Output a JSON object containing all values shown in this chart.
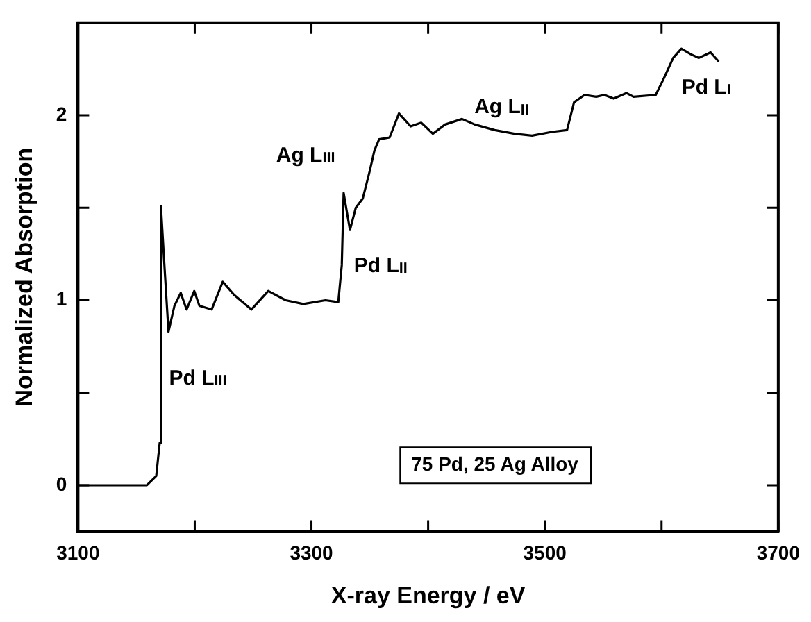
{
  "chart_data": {
    "type": "line",
    "xlabel": "X-ray Energy / eV",
    "ylabel": "Normalized Absorption",
    "xlim": [
      3100,
      3700
    ],
    "ylim": [
      -0.25,
      2.5
    ],
    "xticks": [
      3100,
      {
        "value": 3200,
        "label": null
      },
      3300,
      {
        "value": 3400,
        "label": null
      },
      3500,
      {
        "value": 3600,
        "label": null
      },
      3700
    ],
    "yticks": [
      0,
      {
        "value": 0.5,
        "label": null
      },
      1,
      {
        "value": 1.5,
        "label": null
      },
      2
    ],
    "grid": false,
    "legend": false,
    "marker": "none",
    "line_style": "solid",
    "series": [
      {
        "color": "#000000",
        "x": [
          3100,
          3159,
          3167,
          3170,
          3171,
          3174,
          3177.5,
          3182.6,
          3188,
          3193,
          3199.6,
          3204,
          3214.5,
          3224,
          3233.6,
          3248.5,
          3263,
          3278,
          3293,
          3312,
          3323,
          3326,
          3327.6,
          3333,
          3338,
          3344,
          3350,
          3354,
          3358,
          3367,
          3375,
          3385,
          3394,
          3404,
          3414.5,
          3429,
          3440,
          3457,
          3474,
          3489,
          3506,
          3519,
          3525,
          3534,
          3544,
          3551,
          3559,
          3570,
          3576,
          3595,
          3602,
          3610,
          3617,
          3625,
          3632,
          3642,
          3649
        ],
        "values": [
          0,
          0,
          0.05,
          0.23,
          1.51,
          1.19,
          0.83,
          0.97,
          1.04,
          0.95,
          1.05,
          0.97,
          0.95,
          1.1,
          1.03,
          0.95,
          1.05,
          1.0,
          0.98,
          1.0,
          0.99,
          1.19,
          1.58,
          1.38,
          1.5,
          1.55,
          1.7,
          1.81,
          1.87,
          1.88,
          2.01,
          1.94,
          1.96,
          1.9,
          1.95,
          1.98,
          1.95,
          1.92,
          1.9,
          1.89,
          1.91,
          1.92,
          2.07,
          2.11,
          2.1,
          2.11,
          2.09,
          2.12,
          2.1,
          2.11,
          2.2,
          2.31,
          2.36,
          2.33,
          2.31,
          2.34,
          2.29
        ]
      }
    ],
    "annotations": [
      "Pd L$_{III}$",
      "Ag L$_{III}$",
      "Pd L$_{II}$",
      "Ag L$_{II}$",
      "Pd L$_{I}$",
      "75 Pd, 25 Ag Alloy"
    ]
  }
}
